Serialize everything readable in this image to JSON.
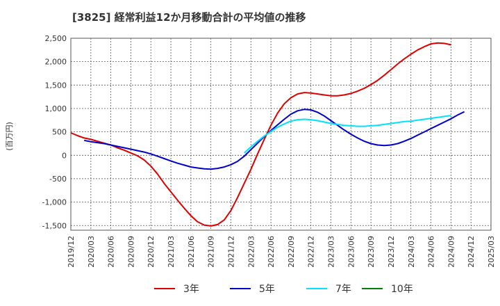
{
  "chart_data": {
    "type": "line",
    "title": "[3825]  経常利益12か月移動合計の平均値の推移",
    "ylabel": "(百万円)",
    "xlabel": "",
    "ylim": [
      -1600,
      2500
    ],
    "y_ticks": [
      2500,
      2000,
      1500,
      1000,
      500,
      0,
      -500,
      -1000,
      -1500
    ],
    "y_tick_labels": [
      "2,500",
      "2,000",
      "1,500",
      "1,000",
      "500",
      "0",
      "-500",
      "-1,000",
      "-1,500"
    ],
    "x_tick_labels": [
      "2019/12",
      "2020/03",
      "2020/06",
      "2020/09",
      "2020/12",
      "2021/03",
      "2021/06",
      "2021/09",
      "2021/12",
      "2022/03",
      "2022/06",
      "2022/09",
      "2022/12",
      "2023/03",
      "2023/06",
      "2023/09",
      "2023/12",
      "2024/03",
      "2024/06",
      "2024/09",
      "2024/12",
      "2025/03"
    ],
    "grid": true,
    "legend_position": "bottom",
    "series": [
      {
        "name": "3年",
        "color": "#dd0000",
        "start": "2019/12",
        "values": [
          480,
          420,
          370,
          340,
          300,
          260,
          220,
          160,
          110,
          50,
          -10,
          -100,
          -230,
          -400,
          -600,
          -780,
          -960,
          -1130,
          -1290,
          -1420,
          -1490,
          -1510,
          -1480,
          -1380,
          -1180,
          -900,
          -600,
          -300,
          30,
          340,
          640,
          900,
          1100,
          1230,
          1310,
          1340,
          1330,
          1310,
          1290,
          1270,
          1270,
          1290,
          1320,
          1370,
          1430,
          1510,
          1600,
          1710,
          1830,
          1950,
          2060,
          2160,
          2250,
          2320,
          2380,
          2400,
          2390,
          2360
        ]
      },
      {
        "name": "5年",
        "color": "#0000cc",
        "start": "2020/02",
        "values": [
          320,
          290,
          270,
          250,
          220,
          190,
          160,
          130,
          100,
          70,
          30,
          -20,
          -70,
          -120,
          -170,
          -210,
          -250,
          -270,
          -290,
          -295,
          -280,
          -250,
          -200,
          -130,
          -20,
          120,
          260,
          400,
          530,
          650,
          770,
          880,
          950,
          980,
          970,
          920,
          840,
          740,
          640,
          540,
          450,
          370,
          300,
          250,
          220,
          210,
          220,
          250,
          300,
          360,
          430,
          500,
          570,
          640,
          710,
          780,
          860,
          930
        ]
      },
      {
        "name": "7年",
        "color": "#00e0ff",
        "start": "2022/02",
        "values": [
          50,
          180,
          300,
          410,
          510,
          600,
          670,
          730,
          760,
          770,
          760,
          740,
          710,
          680,
          660,
          640,
          630,
          620,
          620,
          630,
          640,
          660,
          680,
          700,
          720,
          730,
          750,
          770,
          790,
          810,
          830,
          850
        ]
      },
      {
        "name": "10年",
        "color": "#008000",
        "start": "2019/12",
        "values": []
      }
    ]
  }
}
